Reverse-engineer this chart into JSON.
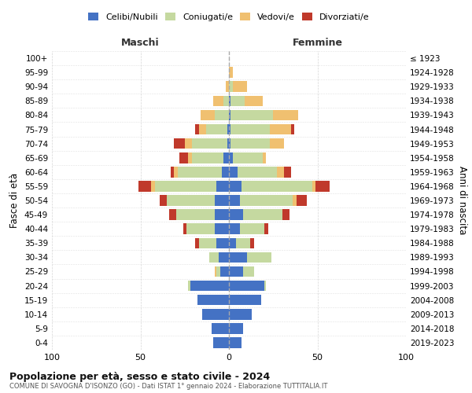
{
  "age_groups": [
    "0-4",
    "5-9",
    "10-14",
    "15-19",
    "20-24",
    "25-29",
    "30-34",
    "35-39",
    "40-44",
    "45-49",
    "50-54",
    "55-59",
    "60-64",
    "65-69",
    "70-74",
    "75-79",
    "80-84",
    "85-89",
    "90-94",
    "95-99",
    "100+"
  ],
  "birth_years": [
    "2019-2023",
    "2014-2018",
    "2009-2013",
    "2004-2008",
    "1999-2003",
    "1994-1998",
    "1989-1993",
    "1984-1988",
    "1979-1983",
    "1974-1978",
    "1969-1973",
    "1964-1968",
    "1959-1963",
    "1954-1958",
    "1949-1953",
    "1944-1948",
    "1939-1943",
    "1934-1938",
    "1929-1933",
    "1924-1928",
    "≤ 1923"
  ],
  "colors": {
    "celibi": "#4472c4",
    "coniugati": "#c5d9a0",
    "vedovi": "#f0c070",
    "divorziati": "#c0392b"
  },
  "maschi": {
    "celibi": [
      9,
      10,
      15,
      18,
      22,
      5,
      6,
      7,
      8,
      8,
      8,
      7,
      4,
      3,
      1,
      1,
      0,
      0,
      0,
      0,
      0
    ],
    "coniugati": [
      0,
      0,
      0,
      0,
      1,
      2,
      5,
      10,
      16,
      22,
      27,
      35,
      25,
      18,
      20,
      12,
      8,
      3,
      0,
      0,
      0
    ],
    "vedovi": [
      0,
      0,
      0,
      0,
      0,
      1,
      0,
      0,
      0,
      0,
      0,
      2,
      2,
      2,
      4,
      4,
      8,
      6,
      2,
      0,
      0
    ],
    "divorziati": [
      0,
      0,
      0,
      0,
      0,
      0,
      0,
      2,
      2,
      4,
      4,
      7,
      2,
      5,
      6,
      2,
      0,
      0,
      0,
      0,
      0
    ]
  },
  "femmine": {
    "celibi": [
      7,
      8,
      13,
      18,
      20,
      8,
      10,
      4,
      6,
      8,
      6,
      7,
      5,
      2,
      1,
      1,
      1,
      1,
      0,
      0,
      0
    ],
    "coniugati": [
      0,
      0,
      0,
      0,
      1,
      6,
      14,
      8,
      14,
      22,
      30,
      40,
      22,
      17,
      22,
      22,
      24,
      8,
      2,
      0,
      0
    ],
    "vedovi": [
      0,
      0,
      0,
      0,
      0,
      0,
      0,
      0,
      0,
      0,
      2,
      2,
      4,
      2,
      8,
      12,
      14,
      10,
      8,
      2,
      0
    ],
    "divorziati": [
      0,
      0,
      0,
      0,
      0,
      0,
      0,
      2,
      2,
      4,
      6,
      8,
      4,
      0,
      0,
      2,
      0,
      0,
      0,
      0,
      0
    ]
  },
  "xlim": [
    -100,
    100
  ],
  "xticks": [
    -100,
    -50,
    0,
    50,
    100
  ],
  "xticklabels": [
    "100",
    "50",
    "0",
    "50",
    "100"
  ],
  "title": "Popolazione per età, sesso e stato civile - 2024",
  "subtitle": "COMUNE DI SAVOGNA D'ISONZO (GO) - Dati ISTAT 1° gennaio 2024 - Elaborazione TUTTITALIA.IT",
  "ylabel_left": "Fasce di età",
  "ylabel_right": "Anni di nascita",
  "header_maschi": "Maschi",
  "header_femmine": "Femmine",
  "legend_labels": [
    "Celibi/Nubili",
    "Coniugati/e",
    "Vedovi/e",
    "Divorziati/e"
  ],
  "bg_color": "#ffffff",
  "grid_color": "#cccccc"
}
